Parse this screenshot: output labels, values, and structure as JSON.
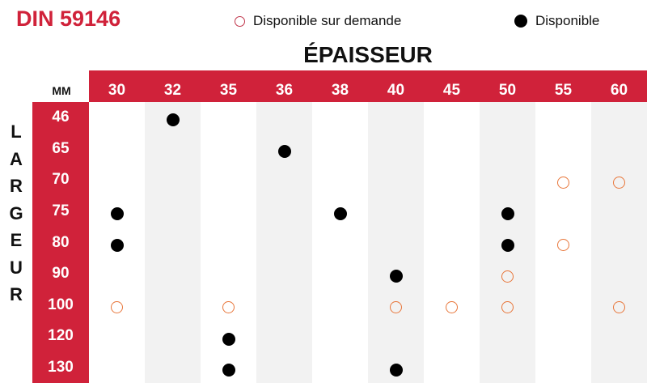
{
  "title": "DIN 59146",
  "legend": {
    "on_demand": "Disponible sur demande",
    "available": "Disponible"
  },
  "thickness_title": "ÉPAISSEUR",
  "unit": "MM",
  "width_title_letters": [
    "L",
    "A",
    "R",
    "G",
    "E",
    "U",
    "R"
  ],
  "columns": [
    "30",
    "32",
    "35",
    "36",
    "38",
    "40",
    "45",
    "50",
    "55",
    "60"
  ],
  "rows": [
    "46",
    "65",
    "70",
    "75",
    "80",
    "90",
    "100",
    "120",
    "130"
  ],
  "availability": [
    {
      "row": "46",
      "col": "32",
      "status": "available"
    },
    {
      "row": "65",
      "col": "36",
      "status": "available"
    },
    {
      "row": "70",
      "col": "55",
      "status": "on_demand"
    },
    {
      "row": "70",
      "col": "60",
      "status": "on_demand"
    },
    {
      "row": "75",
      "col": "30",
      "status": "available"
    },
    {
      "row": "75",
      "col": "38",
      "status": "available"
    },
    {
      "row": "75",
      "col": "50",
      "status": "available"
    },
    {
      "row": "80",
      "col": "30",
      "status": "available"
    },
    {
      "row": "80",
      "col": "50",
      "status": "available"
    },
    {
      "row": "80",
      "col": "55",
      "status": "on_demand"
    },
    {
      "row": "90",
      "col": "40",
      "status": "available"
    },
    {
      "row": "90",
      "col": "50",
      "status": "on_demand"
    },
    {
      "row": "100",
      "col": "30",
      "status": "on_demand"
    },
    {
      "row": "100",
      "col": "35",
      "status": "on_demand"
    },
    {
      "row": "100",
      "col": "40",
      "status": "on_demand"
    },
    {
      "row": "100",
      "col": "45",
      "status": "on_demand"
    },
    {
      "row": "100",
      "col": "50",
      "status": "on_demand"
    },
    {
      "row": "100",
      "col": "60",
      "status": "on_demand"
    },
    {
      "row": "120",
      "col": "35",
      "status": "available"
    },
    {
      "row": "130",
      "col": "35",
      "status": "available"
    },
    {
      "row": "130",
      "col": "40",
      "status": "available"
    }
  ],
  "colors": {
    "brand_red": "#d0223a",
    "available": "#000000",
    "on_demand_border": "#e8763a",
    "stripe": "#f2f2f2"
  }
}
